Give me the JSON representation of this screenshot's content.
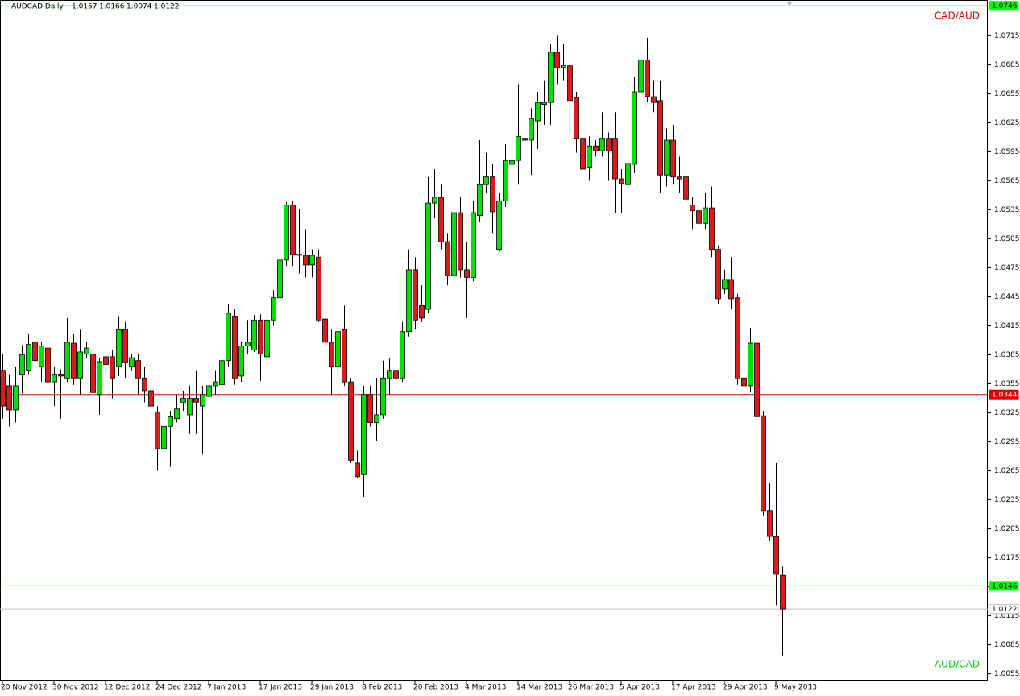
{
  "chart_data": {
    "type": "candlestick",
    "header": {
      "symbol": "AUDCAD,Daily",
      "ohlc": [
        1.0157,
        1.0166,
        1.0074,
        1.0122
      ]
    },
    "categories": [
      "20 Nov 2012",
      null,
      null,
      null,
      null,
      null,
      null,
      null,
      "30 Nov 2012",
      null,
      null,
      null,
      null,
      null,
      null,
      null,
      "12 Dec 2012",
      null,
      null,
      null,
      null,
      null,
      null,
      null,
      "24 Dec 2012",
      null,
      null,
      null,
      null,
      null,
      null,
      null,
      "7 Jan 2013",
      null,
      null,
      null,
      null,
      null,
      null,
      null,
      "17 Jan 2013",
      null,
      null,
      null,
      null,
      null,
      null,
      null,
      "29 Jan 2013",
      null,
      null,
      null,
      null,
      null,
      null,
      null,
      "8 Feb 2013",
      null,
      null,
      null,
      null,
      null,
      null,
      null,
      "20 Feb 2013",
      null,
      null,
      null,
      null,
      null,
      null,
      null,
      "4 Mar 2013",
      null,
      null,
      null,
      null,
      null,
      null,
      null,
      "14 Mar 2013",
      null,
      null,
      null,
      null,
      null,
      null,
      null,
      "26 Mar 2013",
      null,
      null,
      null,
      null,
      null,
      null,
      null,
      "5 Apr 2013",
      null,
      null,
      null,
      null,
      null,
      null,
      null,
      "17 Apr 2013",
      null,
      null,
      null,
      null,
      null,
      null,
      null,
      "29 Apr 2013",
      null,
      null,
      null,
      null,
      null,
      null,
      null,
      "9 May 2013",
      null
    ],
    "ohlc": [
      [
        1.0369,
        1.0386,
        1.0319,
        1.0332
      ],
      [
        1.0353,
        1.0365,
        1.0311,
        1.0328
      ],
      [
        1.0328,
        1.0373,
        1.0315,
        1.0353
      ],
      [
        1.0365,
        1.0395,
        1.0345,
        1.0385
      ],
      [
        1.0369,
        1.0407,
        1.0365,
        1.0396
      ],
      [
        1.0398,
        1.0408,
        1.0361,
        1.0379
      ],
      [
        1.0373,
        1.0398,
        1.0357,
        1.0394
      ],
      [
        1.0392,
        1.0398,
        1.0336,
        1.0357
      ],
      [
        1.0357,
        1.0373,
        1.0332,
        1.0365
      ],
      [
        1.0365,
        1.037,
        1.0319,
        1.0363
      ],
      [
        1.0361,
        1.0423,
        1.0357,
        1.0398
      ],
      [
        1.0397,
        1.0407,
        1.0354,
        1.0361
      ],
      [
        1.0361,
        1.0411,
        1.0344,
        1.0388
      ],
      [
        1.0386,
        1.0398,
        1.0382,
        1.0392
      ],
      [
        1.0386,
        1.0394,
        1.0336,
        1.0346
      ],
      [
        1.0344,
        1.0382,
        1.0323,
        1.0378
      ],
      [
        1.0383,
        1.039,
        1.0361,
        1.0375
      ],
      [
        1.0383,
        1.039,
        1.034,
        1.0361
      ],
      [
        1.0373,
        1.0425,
        1.0363,
        1.0411
      ],
      [
        1.0411,
        1.0419,
        1.0361,
        1.0377
      ],
      [
        1.0373,
        1.0386,
        1.0369,
        1.0382
      ],
      [
        1.0379,
        1.0386,
        1.0344,
        1.0361
      ],
      [
        1.0361,
        1.0373,
        1.0336,
        1.0348
      ],
      [
        1.0348,
        1.0357,
        1.0319,
        1.0332
      ],
      [
        1.0326,
        1.0332,
        1.0265,
        1.0288
      ],
      [
        1.0288,
        1.0319,
        1.0267,
        1.0311
      ],
      [
        1.0311,
        1.0327,
        1.0269,
        1.0321
      ],
      [
        1.0319,
        1.0344,
        1.0315,
        1.0329
      ],
      [
        1.0336,
        1.0348,
        1.0327,
        1.034
      ],
      [
        1.0323,
        1.0353,
        1.0303,
        1.034
      ],
      [
        1.034,
        1.0369,
        1.0303,
        1.0336
      ],
      [
        1.0332,
        1.0353,
        1.0282,
        1.0344
      ],
      [
        1.0342,
        1.0357,
        1.0327,
        1.0353
      ],
      [
        1.0353,
        1.0369,
        1.0344,
        1.0357
      ],
      [
        1.0354,
        1.0386,
        1.0348,
        1.0379
      ],
      [
        1.0379,
        1.0438,
        1.0373,
        1.0428
      ],
      [
        1.0425,
        1.0432,
        1.0354,
        1.0361
      ],
      [
        1.0363,
        1.0398,
        1.0357,
        1.0394
      ],
      [
        1.0394,
        1.0421,
        1.0386,
        1.0398
      ],
      [
        1.039,
        1.0426,
        1.0388,
        1.0421
      ],
      [
        1.0421,
        1.0427,
        1.0358,
        1.0386
      ],
      [
        1.0383,
        1.0444,
        1.0369,
        1.0421
      ],
      [
        1.0421,
        1.0452,
        1.0415,
        1.0444
      ],
      [
        1.0444,
        1.0494,
        1.0428,
        1.0483
      ],
      [
        1.0483,
        1.0543,
        1.0477,
        1.054
      ],
      [
        1.054,
        1.0544,
        1.0477,
        1.0489
      ],
      [
        1.0489,
        1.0536,
        1.0469,
        1.0488
      ],
      [
        1.0488,
        1.0515,
        1.0465,
        1.0478
      ],
      [
        1.0478,
        1.0494,
        1.0465,
        1.0488
      ],
      [
        1.0486,
        1.0494,
        1.0419,
        1.0421
      ],
      [
        1.0422,
        1.0423,
        1.0386,
        1.0398
      ],
      [
        1.0398,
        1.0411,
        1.0344,
        1.0373
      ],
      [
        1.0373,
        1.0423,
        1.0369,
        1.0409
      ],
      [
        1.0411,
        1.0436,
        1.0353,
        1.0357
      ],
      [
        1.0357,
        1.0361,
        1.0273,
        1.0276
      ],
      [
        1.0273,
        1.0286,
        1.0257,
        1.0259
      ],
      [
        1.0261,
        1.0353,
        1.0238,
        1.0344
      ],
      [
        1.0344,
        1.0353,
        1.0311,
        1.0315
      ],
      [
        1.0315,
        1.0361,
        1.0296,
        1.0323
      ],
      [
        1.0323,
        1.0379,
        1.0319,
        1.0361
      ],
      [
        1.0361,
        1.0382,
        1.0344,
        1.0369
      ],
      [
        1.0369,
        1.0394,
        1.0348,
        1.0361
      ],
      [
        1.0361,
        1.0419,
        1.0357,
        1.0409
      ],
      [
        1.0409,
        1.0494,
        1.0404,
        1.0473
      ],
      [
        1.0473,
        1.0486,
        1.0411,
        1.0421
      ],
      [
        1.0436,
        1.0457,
        1.0419,
        1.0423
      ],
      [
        1.0432,
        1.0569,
        1.0428,
        1.0542
      ],
      [
        1.0542,
        1.0577,
        1.0527,
        1.0548
      ],
      [
        1.0548,
        1.0561,
        1.0494,
        1.0502
      ],
      [
        1.0502,
        1.0511,
        1.0457,
        1.0467
      ],
      [
        1.0467,
        1.0544,
        1.044,
        1.0532
      ],
      [
        1.0532,
        1.0548,
        1.0465,
        1.0473
      ],
      [
        1.0473,
        1.0502,
        1.0423,
        1.0465
      ],
      [
        1.0465,
        1.0544,
        1.0461,
        1.0532
      ],
      [
        1.0529,
        1.0607,
        1.0523,
        1.0561
      ],
      [
        1.0561,
        1.0594,
        1.0552,
        1.0569
      ],
      [
        1.0569,
        1.0582,
        1.0511,
        1.0533
      ],
      [
        1.0494,
        1.0552,
        1.0492,
        1.0544
      ],
      [
        1.0544,
        1.0603,
        1.0538,
        1.0586
      ],
      [
        1.0582,
        1.0598,
        1.0573,
        1.0586
      ],
      [
        1.0586,
        1.0665,
        1.0561,
        1.0611
      ],
      [
        1.0609,
        1.0628,
        1.0577,
        1.0607
      ],
      [
        1.0607,
        1.064,
        1.0571,
        1.0629
      ],
      [
        1.0627,
        1.0657,
        1.0598,
        1.0646
      ],
      [
        1.0644,
        1.0669,
        1.0623,
        1.0646
      ],
      [
        1.0646,
        1.0707,
        1.0623,
        1.0698
      ],
      [
        1.0698,
        1.0715,
        1.0665,
        1.0682
      ],
      [
        1.0682,
        1.0707,
        1.0669,
        1.0684
      ],
      [
        1.0684,
        1.0694,
        1.0644,
        1.0648
      ],
      [
        1.0651,
        1.0657,
        1.0594,
        1.0609
      ],
      [
        1.0609,
        1.0615,
        1.0563,
        1.0577
      ],
      [
        1.0579,
        1.0611,
        1.0565,
        1.0601
      ],
      [
        1.0601,
        1.0607,
        1.059,
        1.0596
      ],
      [
        1.0596,
        1.0636,
        1.059,
        1.0609
      ],
      [
        1.0609,
        1.0615,
        1.0565,
        1.0596
      ],
      [
        1.0609,
        1.0636,
        1.0532,
        1.0567
      ],
      [
        1.0567,
        1.0577,
        1.0532,
        1.0562
      ],
      [
        1.0561,
        1.0657,
        1.0523,
        1.0583
      ],
      [
        1.0582,
        1.0673,
        1.0573,
        1.0657
      ],
      [
        1.0657,
        1.0707,
        1.0653,
        1.069
      ],
      [
        1.069,
        1.0713,
        1.0646,
        1.0652
      ],
      [
        1.0652,
        1.0669,
        1.0636,
        1.0646
      ],
      [
        1.0648,
        1.0669,
        1.0553,
        1.0571
      ],
      [
        1.0571,
        1.0619,
        1.0559,
        1.0607
      ],
      [
        1.0607,
        1.0623,
        1.0561,
        1.0569
      ],
      [
        1.0569,
        1.059,
        1.0553,
        1.0567
      ],
      [
        1.0569,
        1.0602,
        1.054,
        1.0546
      ],
      [
        1.054,
        1.0548,
        1.0515,
        1.0534
      ],
      [
        1.0534,
        1.0548,
        1.0515,
        1.0521
      ],
      [
        1.0521,
        1.0552,
        1.0515,
        1.0537
      ],
      [
        1.0537,
        1.0559,
        1.0486,
        1.0494
      ],
      [
        1.0494,
        1.0498,
        1.0438,
        1.0443
      ],
      [
        1.0453,
        1.0473,
        1.0448,
        1.0463
      ],
      [
        1.0463,
        1.0486,
        1.0432,
        1.0443
      ],
      [
        1.0444,
        1.0448,
        1.0354,
        1.0361
      ],
      [
        1.0361,
        1.0378,
        1.0303,
        1.0353
      ],
      [
        1.0353,
        1.0413,
        1.0346,
        1.0397
      ],
      [
        1.0397,
        1.0403,
        1.0311,
        1.0321
      ],
      [
        1.0322,
        1.0327,
        1.0219,
        1.0224
      ],
      [
        1.0224,
        1.0253,
        1.0193,
        1.0197
      ],
      [
        1.0197,
        1.0273,
        1.0126,
        1.0158
      ],
      [
        1.0157,
        1.0166,
        1.0074,
        1.0122
      ]
    ],
    "up_color": "#00e000",
    "down_color": "#d81c1c",
    "wick_color": "#000000",
    "ylim": [
      1.0048,
      1.0752
    ],
    "yticks": [
      1.0055,
      1.0085,
      1.0115,
      1.0145,
      1.0175,
      1.0205,
      1.0235,
      1.0265,
      1.0295,
      1.0325,
      1.0355,
      1.0385,
      1.0415,
      1.0445,
      1.0475,
      1.0505,
      1.0535,
      1.0565,
      1.0595,
      1.0625,
      1.0655,
      1.0685,
      1.0715
    ],
    "grid": false,
    "hlines": [
      {
        "value": 1.0746,
        "color": "#00ff00",
        "label_fill": "#00ff00",
        "label_text": "#000000"
      },
      {
        "value": 1.0344,
        "color": "#e00000",
        "label_fill": "#e00000",
        "label_text": "#ffffff"
      },
      {
        "value": 1.0146,
        "color": "#00ff00",
        "label_fill": "#00ff00",
        "label_text": "#000000"
      },
      {
        "value": 1.0122,
        "color": "#c0c0c0",
        "label_fill": "#ffffff",
        "label_text": "#000000"
      }
    ],
    "annotations": [
      {
        "text": "CAD/AUD",
        "color": "#e00000"
      },
      {
        "text": "AUD/CAD",
        "color": "#00d000"
      }
    ]
  }
}
